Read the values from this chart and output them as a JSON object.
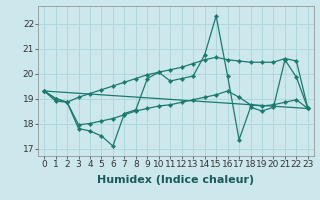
{
  "xlabel": "Humidex (Indice chaleur)",
  "background_color": "#cce8ec",
  "grid_color": "#b0d8dc",
  "line_color": "#1a7a6e",
  "marker_color": "#1a7a6e",
  "xlim": [
    -0.5,
    23.5
  ],
  "ylim": [
    16.7,
    22.7
  ],
  "yticks": [
    17,
    18,
    19,
    20,
    21,
    22
  ],
  "xticks": [
    0,
    1,
    2,
    3,
    4,
    5,
    6,
    7,
    8,
    9,
    10,
    11,
    12,
    13,
    14,
    15,
    16,
    17,
    18,
    19,
    20,
    21,
    22,
    23
  ],
  "series": [
    {
      "x": [
        0,
        1,
        2,
        3,
        4,
        5,
        6,
        7,
        8,
        9,
        10,
        11,
        12,
        13,
        14,
        15,
        16,
        17,
        18,
        19,
        20,
        21,
        22,
        23
      ],
      "y": [
        19.3,
        19.0,
        18.85,
        17.8,
        17.7,
        17.5,
        17.1,
        18.4,
        18.55,
        19.8,
        20.05,
        19.7,
        19.8,
        19.9,
        20.75,
        22.3,
        19.9,
        17.35,
        18.65,
        18.5,
        18.65,
        20.55,
        19.85,
        18.6
      ]
    },
    {
      "x": [
        0,
        1,
        2,
        3,
        4,
        5,
        6,
        7,
        8,
        9,
        10,
        11,
        12,
        13,
        14,
        15,
        16,
        17,
        18,
        19,
        20,
        21,
        22,
        23
      ],
      "y": [
        19.3,
        19.0,
        18.85,
        19.05,
        19.2,
        19.35,
        19.5,
        19.65,
        19.8,
        19.95,
        20.05,
        20.15,
        20.25,
        20.4,
        20.55,
        20.65,
        20.55,
        20.5,
        20.45,
        20.45,
        20.45,
        20.6,
        20.5,
        18.6
      ]
    },
    {
      "x": [
        0,
        1,
        2,
        3,
        4,
        5,
        6,
        7,
        8,
        9,
        10,
        11,
        12,
        13,
        14,
        15,
        16,
        17,
        18,
        19,
        20,
        21,
        22,
        23
      ],
      "y": [
        19.3,
        18.9,
        18.85,
        17.95,
        18.0,
        18.1,
        18.2,
        18.35,
        18.5,
        18.6,
        18.7,
        18.75,
        18.85,
        18.95,
        19.05,
        19.15,
        19.3,
        19.05,
        18.75,
        18.7,
        18.75,
        18.85,
        18.95,
        18.6
      ]
    },
    {
      "x": [
        0,
        23
      ],
      "y": [
        19.3,
        18.6
      ]
    }
  ],
  "tick_fontsize": 6.5,
  "label_fontsize": 8
}
